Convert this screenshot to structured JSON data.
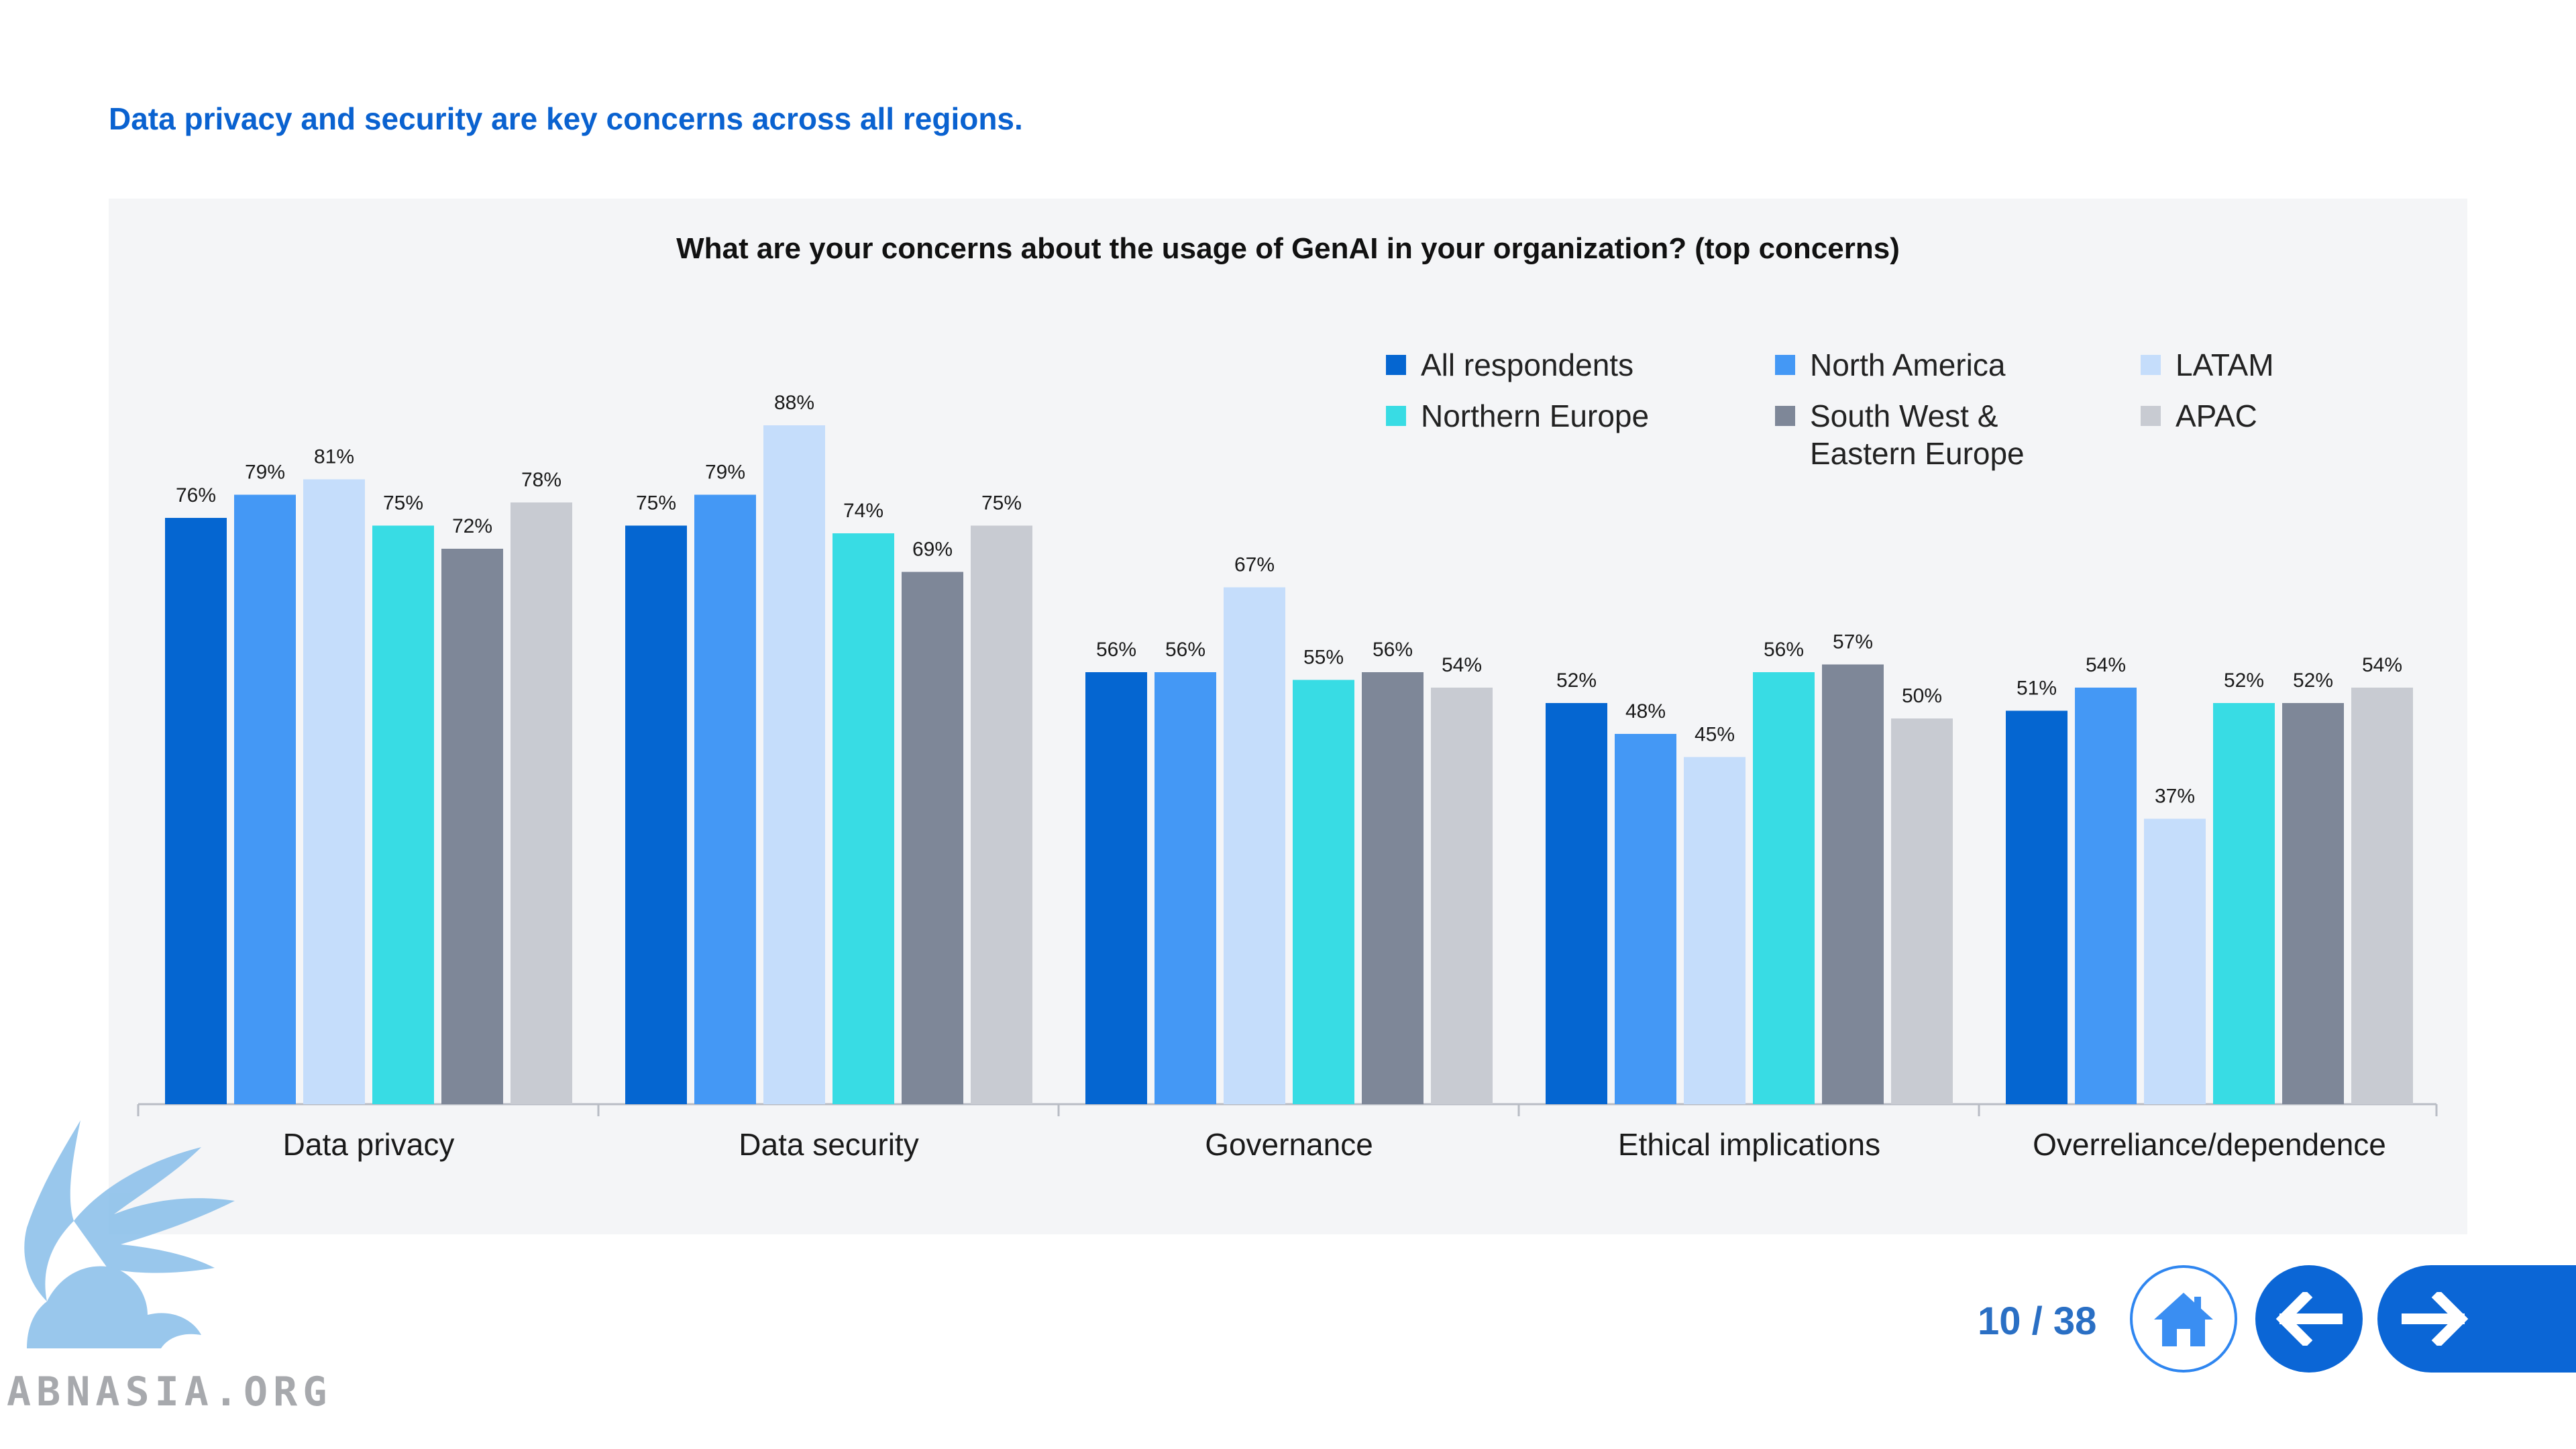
{
  "headline": "Data privacy and security are key concerns across all regions.",
  "colors": {
    "headline": "#0a62d0",
    "panel_bg": "#f4f5f7",
    "nav_blue": "#0b66d6"
  },
  "footer": {
    "page_indicator": "10 / 38",
    "home_icon": "home-icon",
    "prev_icon": "arrow-left-icon",
    "next_icon": "arrow-right-icon"
  },
  "watermark": {
    "text": "ABNASIA.ORG",
    "logo_icon": "griffin-logo-icon"
  },
  "chart_data": {
    "type": "bar",
    "title": "What are your concerns about the usage of GenAI in your organization? (top concerns)",
    "xlabel": "",
    "ylabel": "",
    "ylim": [
      0,
      100
    ],
    "grid": false,
    "legend_position": "top-right",
    "value_suffix": "%",
    "categories": [
      "Data privacy",
      "Data security",
      "Governance",
      "Ethical implications",
      "Overreliance/dependence"
    ],
    "series": [
      {
        "name": "All respondents",
        "color": "#0566d1",
        "values": [
          76,
          75,
          56,
          52,
          51
        ]
      },
      {
        "name": "North America",
        "color": "#4498f5",
        "values": [
          79,
          79,
          56,
          48,
          54
        ]
      },
      {
        "name": "LATAM",
        "color": "#c5ddfb",
        "values": [
          81,
          88,
          67,
          45,
          37
        ]
      },
      {
        "name": "Northern Europe",
        "color": "#38dce4",
        "values": [
          75,
          74,
          55,
          56,
          52
        ]
      },
      {
        "name": "South West & Eastern Europe",
        "color": "#7e8798",
        "values": [
          72,
          69,
          56,
          57,
          52
        ]
      },
      {
        "name": "APAC",
        "color": "#c8cbd2",
        "values": [
          78,
          75,
          54,
          50,
          54
        ]
      }
    ]
  }
}
